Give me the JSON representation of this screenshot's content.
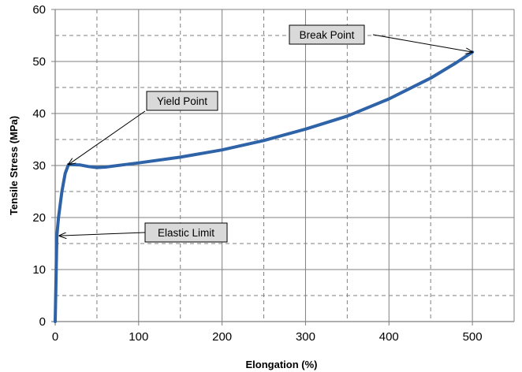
{
  "colors": {
    "curve": "#2f63a8",
    "grid": "#7f7f7f",
    "annotation_fill": "#d9d9d9"
  },
  "chart_data": {
    "type": "line",
    "title": "",
    "xlabel": "Elongation (%)",
    "ylabel": "Tensile Stress (MPa)",
    "xlim": [
      0,
      550
    ],
    "ylim": [
      0,
      60
    ],
    "x_ticks": [
      0,
      100,
      200,
      300,
      400,
      500
    ],
    "y_ticks": [
      0,
      10,
      20,
      30,
      40,
      50,
      60
    ],
    "grid": "solid major lines with dashed minor lines",
    "series": [
      {
        "x": [
          0,
          2,
          4,
          8,
          12,
          16,
          30,
          40,
          50,
          60,
          80,
          100,
          150,
          200,
          250,
          300,
          350,
          400,
          450,
          480,
          500
        ],
        "y": [
          0,
          16.5,
          20,
          25,
          28.5,
          30.2,
          30.1,
          29.8,
          29.6,
          29.7,
          30.1,
          30.5,
          31.6,
          33,
          34.8,
          37,
          39.5,
          42.8,
          46.8,
          49.7,
          51.8
        ]
      }
    ],
    "annotations": [
      {
        "text": "Break Point",
        "target": [
          500,
          51.8
        ]
      },
      {
        "text": "Yield Point",
        "target": [
          16,
          30.2
        ]
      },
      {
        "text": "Elastic Limit",
        "target": [
          5,
          16.5
        ]
      }
    ]
  }
}
